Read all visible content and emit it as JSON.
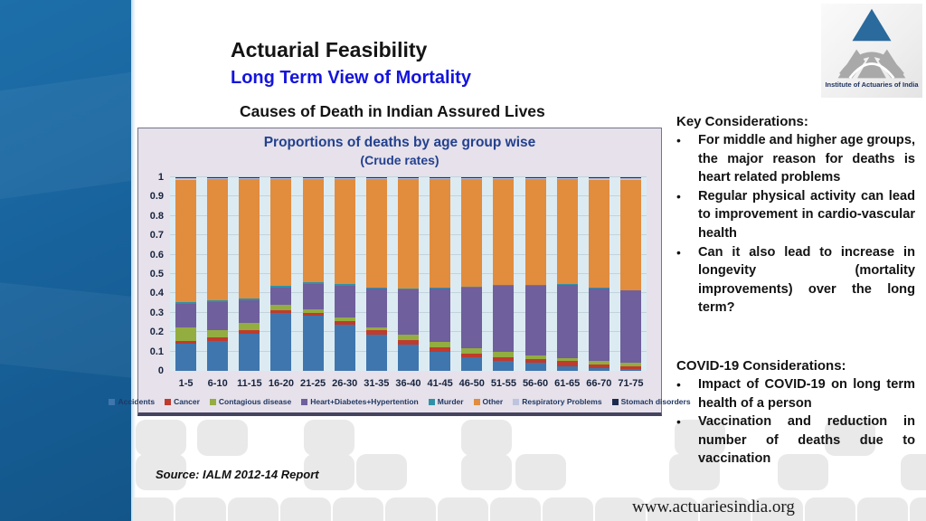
{
  "slide": {
    "title": "Actuarial Feasibility",
    "subtitle": "Long Term View of Mortality",
    "chart_heading": "Causes of Death in Indian Assured Lives",
    "source_note": "Source: IALM 2012-14 Report",
    "website": "www.actuariesindia.org",
    "logo_caption": "Institute of Actuaries of India",
    "accent_blue": "#1414dd",
    "logo_triangle_blue": "#2a6a9d",
    "logo_gray": "#a9a9a9"
  },
  "right_panel": {
    "key_heading": "Key Considerations:",
    "key_bullets": [
      "For middle and higher age groups, the major reason for deaths is heart related problems",
      "Regular physical activity can lead to improvement in cardio-vascular health",
      "Can it also lead to increase in longevity (mortality improvements) over the long term?"
    ],
    "covid_heading": "COVID-19 Considerations:",
    "covid_bullets": [
      "Impact of COVID-19 on long term health of a person",
      "Vaccination and reduction in number of deaths due to vaccination"
    ]
  },
  "chart_data": {
    "type": "bar",
    "stacked": true,
    "title": "Proportions of deaths by age group wise",
    "subtitle": "(Crude rates)",
    "categories": [
      "1-5",
      "6-10",
      "11-15",
      "16-20",
      "21-25",
      "26-30",
      "31-35",
      "36-40",
      "41-45",
      "46-50",
      "51-55",
      "56-60",
      "61-65",
      "66-70",
      "71-75"
    ],
    "series": [
      {
        "name": "Accidents",
        "color": "#3f76ae",
        "values": [
          0.14,
          0.155,
          0.19,
          0.3,
          0.285,
          0.24,
          0.185,
          0.135,
          0.1,
          0.07,
          0.05,
          0.04,
          0.025,
          0.015,
          0.01
        ]
      },
      {
        "name": "Cancer",
        "color": "#bf3b2d",
        "values": [
          0.015,
          0.02,
          0.02,
          0.015,
          0.015,
          0.015,
          0.025,
          0.025,
          0.02,
          0.02,
          0.02,
          0.02,
          0.025,
          0.02,
          0.015
        ]
      },
      {
        "name": "Contagious disease",
        "color": "#93ad40",
        "values": [
          0.07,
          0.035,
          0.04,
          0.025,
          0.02,
          0.02,
          0.015,
          0.025,
          0.03,
          0.025,
          0.03,
          0.02,
          0.015,
          0.015,
          0.015
        ]
      },
      {
        "name": "Heart+Diabetes+Hypertention",
        "color": "#6f5f9c",
        "values": [
          0.12,
          0.145,
          0.115,
          0.09,
          0.13,
          0.165,
          0.2,
          0.235,
          0.275,
          0.315,
          0.34,
          0.36,
          0.38,
          0.375,
          0.375
        ]
      },
      {
        "name": "Murder",
        "color": "#2f91a8",
        "values": [
          0.012,
          0.01,
          0.01,
          0.01,
          0.01,
          0.01,
          0.005,
          0.005,
          0.005,
          0.005,
          0.005,
          0.005,
          0.005,
          0.003,
          0.003
        ]
      },
      {
        "name": "Other",
        "color": "#e28c3e",
        "values": [
          0.628,
          0.625,
          0.615,
          0.55,
          0.53,
          0.54,
          0.56,
          0.565,
          0.56,
          0.555,
          0.545,
          0.545,
          0.54,
          0.557,
          0.567
        ]
      },
      {
        "name": "Respiratory Problems",
        "color": "#bdc4df",
        "values": [
          0.01,
          0.005,
          0.005,
          0.005,
          0.005,
          0.005,
          0.005,
          0.005,
          0.005,
          0.005,
          0.005,
          0.005,
          0.005,
          0.01,
          0.01
        ]
      },
      {
        "name": "Stomach disorders",
        "color": "#1e2b4f",
        "values": [
          0.005,
          0.005,
          0.005,
          0.005,
          0.005,
          0.005,
          0.005,
          0.005,
          0.005,
          0.005,
          0.005,
          0.005,
          0.005,
          0.005,
          0.005
        ]
      }
    ],
    "ylim": [
      0,
      1
    ],
    "yticks": [
      "0",
      "0.1",
      "0.2",
      "0.3",
      "0.4",
      "0.5",
      "0.6",
      "0.7",
      "0.8",
      "0.9",
      "1"
    ],
    "grid": true,
    "legend_position": "bottom",
    "plot_bg": "#dcebf2",
    "panel_bg": "#e6e1ea",
    "title_color": "#23418f"
  }
}
